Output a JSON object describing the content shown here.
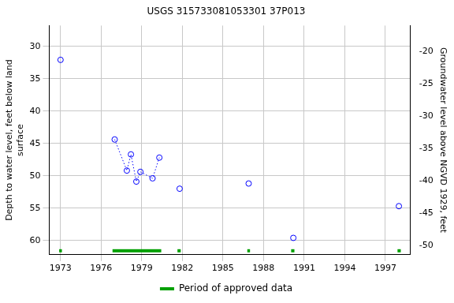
{
  "chart_data": {
    "type": "scatter",
    "title": "USGS 315733081053301 37P013",
    "y_label": [
      "Depth to water level, feet below land",
      "surface"
    ],
    "y2_label": "Groundwater level above NGVD 1929, feet",
    "x": [
      1973.0,
      1977.0,
      1977.9,
      1978.2,
      1978.6,
      1978.9,
      1979.8,
      1980.3,
      1981.8,
      1986.9,
      1990.2,
      1998.0
    ],
    "series": [
      {
        "type": "scatter",
        "marker": "circle",
        "color": "#0000ff",
        "values": [
          32.1,
          null,
          null,
          null,
          null,
          null,
          null,
          null,
          52.0,
          51.2,
          59.6,
          54.7
        ]
      },
      {
        "type": "line",
        "marker": "circle",
        "line_style": "dotted",
        "color": "#0000ff",
        "values": [
          null,
          44.4,
          49.2,
          46.7,
          50.9,
          49.4,
          50.4,
          47.2,
          null,
          null,
          null,
          null
        ]
      }
    ],
    "xlim": [
      1972.16,
      1998.86
    ],
    "xticks": [
      1973,
      1976,
      1979,
      1982,
      1985,
      1988,
      1991,
      1994,
      1997
    ],
    "ylim": [
      62.2,
      26.8
    ],
    "yticks": [
      30,
      35,
      40,
      45,
      50,
      55,
      60
    ],
    "y2lim": [
      -51.4,
      -16.0
    ],
    "y2ticks": [
      -20,
      -25,
      -30,
      -35,
      -40,
      -45,
      -50
    ],
    "grid": true,
    "legend": "bottom",
    "approved_periods": {
      "name": "Period of approved data",
      "color": "#00a000",
      "ranges": [
        [
          1972.9,
          1973.1
        ],
        [
          1976.84,
          1980.44
        ],
        [
          1981.64,
          1981.88
        ],
        [
          1986.8,
          1987.0
        ],
        [
          1990.04,
          1990.28
        ],
        [
          1997.9,
          1998.14
        ]
      ]
    }
  }
}
